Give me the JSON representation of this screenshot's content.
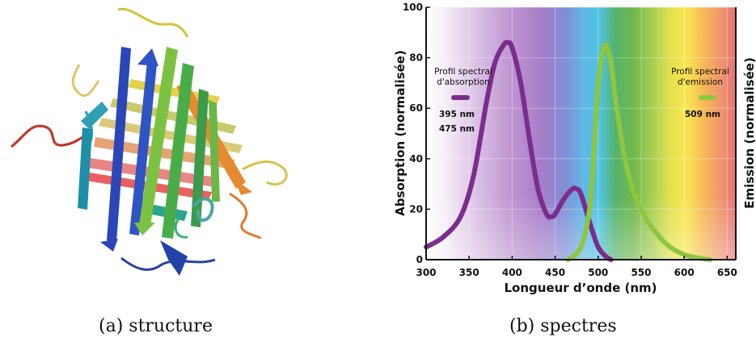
{
  "captions": {
    "left": "(a) structure",
    "right": "(b) spectres"
  },
  "chart_data": {
    "type": "line",
    "xlabel": "Longueur d’onde (nm)",
    "ylabel_left": "Absorption (normalisée)",
    "ylabel_right": "Emission (normalisée)",
    "xlim": [
      300,
      660
    ],
    "ylim": [
      0,
      100
    ],
    "xticks": [
      300,
      350,
      400,
      450,
      500,
      550,
      600,
      650
    ],
    "yticks": [
      0,
      20,
      40,
      60,
      80,
      100
    ],
    "grid": true,
    "series": [
      {
        "name": "Profil spectral d'absorption",
        "color": "#7b2d8e",
        "x": [
          300,
          320,
          340,
          355,
          370,
          380,
          390,
          395,
          400,
          410,
          420,
          430,
          440,
          445,
          450,
          460,
          470,
          475,
          480,
          490,
          500,
          510,
          515
        ],
        "y": [
          5,
          9,
          17,
          33,
          62,
          78,
          85,
          86,
          84,
          70,
          48,
          28,
          18,
          17,
          18,
          24,
          28,
          28,
          26,
          15,
          5,
          1,
          0
        ]
      },
      {
        "name": "Profil spectral d'emission",
        "color": "#8fc63f",
        "x": [
          465,
          480,
          490,
          495,
          500,
          505,
          509,
          515,
          520,
          530,
          540,
          550,
          560,
          580,
          600,
          620,
          630
        ],
        "y": [
          0,
          5,
          20,
          42,
          70,
          82,
          85,
          78,
          64,
          42,
          28,
          20,
          14,
          6,
          2,
          0.5,
          0
        ]
      }
    ],
    "annotations": {
      "absorption_title_1": "Profil spectral",
      "absorption_title_2": "d'absorption",
      "absorption_peak_1": "395 nm",
      "absorption_peak_2": "475 nm",
      "emission_title_1": "Profil spectral",
      "emission_title_2": "d'emission",
      "emission_peak": "509 nm"
    }
  }
}
